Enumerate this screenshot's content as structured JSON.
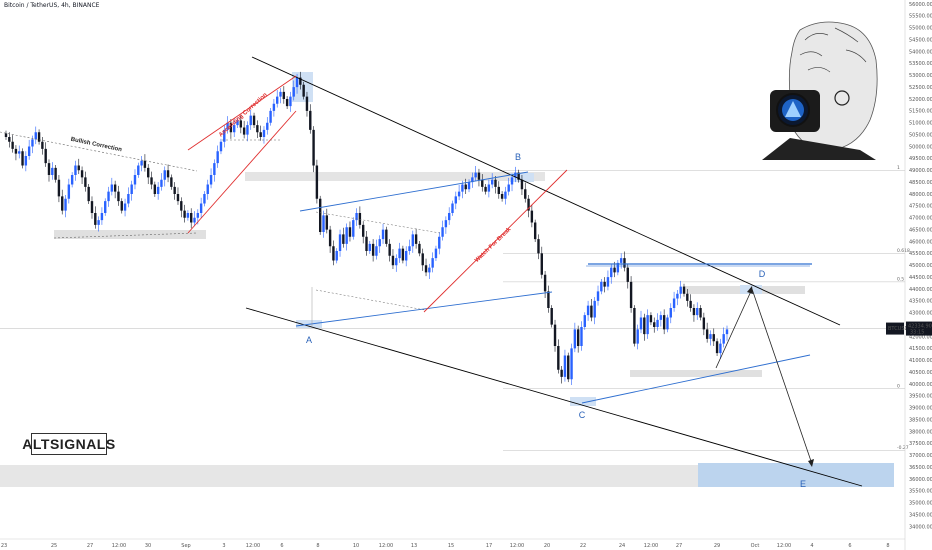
{
  "header": {
    "title": "Bitcoin / TetherUS, 4h, BINANCE"
  },
  "watermark": {
    "text": "ALTSIGNALS"
  },
  "colors": {
    "up": "#2962ff",
    "down": "#131722",
    "channel": "#000000",
    "blue_line": "#2f6fd0",
    "red_line": "#e03030",
    "zone": "#d9d9d9",
    "target_zone": "#bcd4ee"
  },
  "current_price": {
    "price": 42334,
    "label": "BTCUSDT",
    "value": "42334.90",
    "sub": "33:15"
  },
  "chart_data": {
    "type": "candlestick",
    "symbol": "BTCUSDT",
    "interval": "4h",
    "ylim": [
      33600,
      56000
    ],
    "y_ticks": [
      34000,
      34500,
      35000,
      35500,
      36000,
      36500,
      37000,
      37500,
      38000,
      38500,
      39000,
      39500,
      40000,
      40500,
      41000,
      41500,
      42000,
      42500,
      43000,
      43500,
      44000,
      44500,
      45000,
      45500,
      46000,
      46500,
      47000,
      47500,
      48000,
      48500,
      49000,
      49500,
      50000,
      50500,
      51000,
      51500,
      52000,
      52500,
      53000,
      53500,
      54000,
      54500,
      55000,
      55500,
      56000
    ],
    "x_ticks": [
      "23",
      "25",
      "27",
      "12:00",
      "30",
      "Sep",
      "3",
      "12:00",
      "6",
      "8",
      "10",
      "12:00",
      "13",
      "15",
      "17",
      "12:00",
      "20",
      "22",
      "24",
      "12:00",
      "27",
      "29",
      "Oct",
      "12:00",
      "4",
      "6",
      "8"
    ],
    "wave_labels": [
      "A",
      "B",
      "C",
      "D",
      "E"
    ],
    "pattern_labels": [
      "Bullish Correction",
      "Ascending Correction",
      "Watch For Break"
    ],
    "fib_levels": [
      {
        "label": "1",
        "price": 49000
      },
      {
        "label": "0.618",
        "price": 45500
      },
      {
        "label": "0.5",
        "price": 44300
      },
      {
        "label": "0",
        "price": 39800
      },
      {
        "label": "-0.27",
        "price": 37200
      }
    ],
    "closes": [
      50400,
      50200,
      49900,
      49700,
      49800,
      49200,
      49600,
      50000,
      50300,
      50600,
      50200,
      49900,
      49300,
      48800,
      49100,
      48600,
      47900,
      47300,
      47800,
      48400,
      48800,
      49200,
      49000,
      48700,
      48300,
      47700,
      47200,
      46700,
      46900,
      47200,
      47700,
      48100,
      48400,
      48100,
      47700,
      47300,
      47600,
      48000,
      48400,
      48800,
      49200,
      49400,
      49100,
      48700,
      48400,
      48000,
      48300,
      48600,
      49000,
      48700,
      48300,
      48000,
      47700,
      47300,
      47000,
      47200,
      46800,
      47000,
      47200,
      47600,
      48000,
      48400,
      48800,
      49300,
      49800,
      50200,
      50700,
      51000,
      50600,
      50900,
      51100,
      50800,
      50500,
      50900,
      51300,
      50900,
      50600,
      50400,
      50700,
      51000,
      51500,
      51800,
      52100,
      52300,
      52000,
      51700,
      52100,
      52500,
      52900,
      52600,
      52100,
      51500,
      50700,
      49200,
      47800,
      46400,
      47100,
      46500,
      45800,
      45200,
      45600,
      46300,
      45900,
      46600,
      46200,
      46900,
      47200,
      46700,
      46200,
      45600,
      45900,
      45400,
      45800,
      46100,
      46500,
      45900,
      45400,
      45000,
      45300,
      45700,
      45200,
      45600,
      45800,
      46300,
      45900,
      45500,
      45000,
      44700,
      44900,
      45300,
      45700,
      46200,
      46600,
      46900,
      47200,
      47600,
      47900,
      48100,
      48400,
      48200,
      48500,
      48700,
      48900,
      48600,
      48300,
      48100,
      48400,
      48600,
      48300,
      48000,
      47800,
      48100,
      48400,
      48700,
      48900,
      48600,
      48200,
      47800,
      47300,
      46800,
      46100,
      45500,
      44600,
      43900,
      43200,
      42500,
      41600,
      40600,
      40300,
      41200,
      40200,
      41500,
      42300,
      41600,
      42400,
      42900,
      43300,
      42800,
      43500,
      43900,
      44300,
      44100,
      44500,
      44900,
      44700,
      45100,
      45300,
      44900,
      44300,
      43200,
      41700,
      42300,
      42800,
      42100,
      42900,
      42600,
      42400,
      42700,
      42900,
      42300,
      42800,
      43200,
      43600,
      43800,
      44100,
      43800,
      43500,
      43200,
      42900,
      43200,
      42800,
      42300,
      41900,
      42100,
      41800,
      41300,
      41700,
      42100,
      42300
    ]
  }
}
